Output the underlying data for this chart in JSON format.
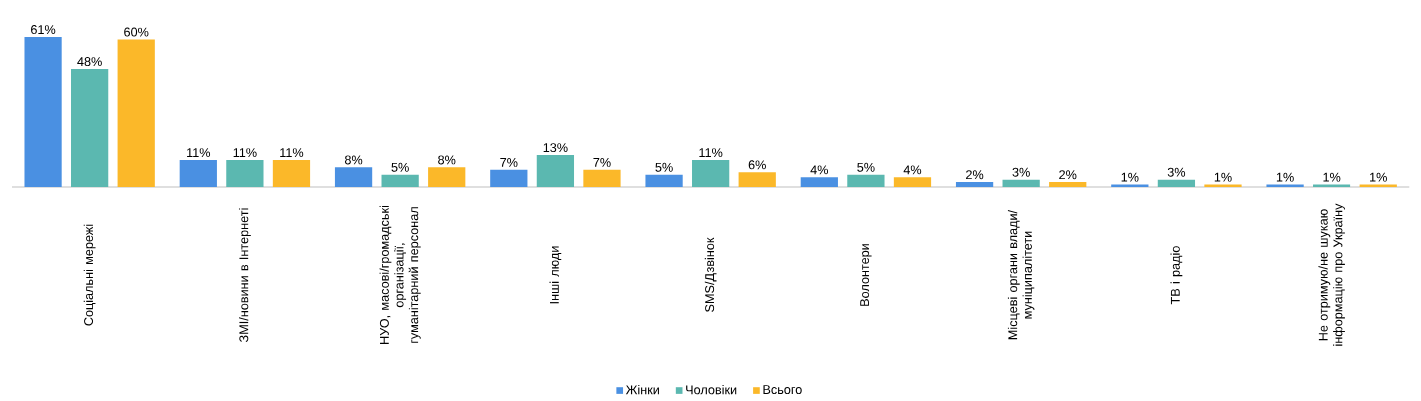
{
  "chart_data": {
    "type": "bar",
    "categories": [
      "Соціальні мережі",
      "ЗМІ/новини в Інтернеті",
      "НУО, масові/громадські організації, гуманітарний персонал",
      "Інші люди",
      "SMS/Дзвінок",
      "Волонтери",
      "Місцеві органи влади/ муніципалітети",
      "ТВ і радіо",
      "Не отримую/не шукаю інформацію про Україну"
    ],
    "series": [
      {
        "name": "Жінки",
        "color": "#4a90e2",
        "values": [
          61,
          11,
          8,
          7,
          5,
          4,
          2,
          1,
          1
        ],
        "value_labels": [
          "61%",
          "11%",
          "8%",
          "7%",
          "5%",
          "4%",
          "2%",
          "1%",
          "1%"
        ]
      },
      {
        "name": "Чоловіки",
        "color": "#5bb8b0",
        "values": [
          48,
          11,
          5,
          13,
          11,
          5,
          3,
          3,
          1
        ],
        "value_labels": [
          "48%",
          "11%",
          "5%",
          "13%",
          "11%",
          "5%",
          "3%",
          "3%",
          "1%"
        ]
      },
      {
        "name": "Всього",
        "color": "#fbb829",
        "values": [
          60,
          11,
          8,
          7,
          6,
          4,
          2,
          1,
          1
        ],
        "value_labels": [
          "60%",
          "11%",
          "8%",
          "7%",
          "6%",
          "4%",
          "2%",
          "1%",
          "1%"
        ]
      }
    ],
    "legend": "bottom"
  }
}
